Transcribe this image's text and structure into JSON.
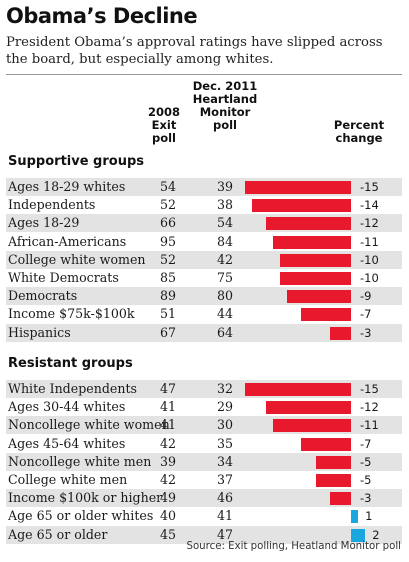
{
  "title": "Obama’s Decline",
  "subtitle": "President Obama’s approval ratings have slipped across the board, but especially among whites.",
  "columns": {
    "col_2008": "2008 Exit poll",
    "col_2011": "Dec. 2011 Heartland Monitor poll",
    "col_change": "Percent change"
  },
  "source": "Source: Exit polling, Heatland Monitor poll",
  "colors": {
    "decline": "#e8192c",
    "gain": "#1aa7e0",
    "shade": "#e3e3e3"
  },
  "chart_data": {
    "type": "bar",
    "title": "Obama’s Decline",
    "xlabel": "Percent change",
    "groups": [
      {
        "name": "Supportive groups",
        "rows": [
          {
            "label": "Ages 18-29 whites",
            "v2008": 54,
            "v2011": 39,
            "change": -15
          },
          {
            "label": "Independents",
            "v2008": 52,
            "v2011": 38,
            "change": -14
          },
          {
            "label": "Ages 18-29",
            "v2008": 66,
            "v2011": 54,
            "change": -12
          },
          {
            "label": "African-Americans",
            "v2008": 95,
            "v2011": 84,
            "change": -11
          },
          {
            "label": "College white women",
            "v2008": 52,
            "v2011": 42,
            "change": -10
          },
          {
            "label": "White Democrats",
            "v2008": 85,
            "v2011": 75,
            "change": -10
          },
          {
            "label": "Democrats",
            "v2008": 89,
            "v2011": 80,
            "change": -9
          },
          {
            "label": "Income $75k-$100k",
            "v2008": 51,
            "v2011": 44,
            "change": -7
          },
          {
            "label": "Hispanics",
            "v2008": 67,
            "v2011": 64,
            "change": -3
          }
        ]
      },
      {
        "name": "Resistant groups",
        "rows": [
          {
            "label": "White Independents",
            "v2008": 47,
            "v2011": 32,
            "change": -15
          },
          {
            "label": "Ages 30-44 whites",
            "v2008": 41,
            "v2011": 29,
            "change": -12
          },
          {
            "label": "Noncollege white women",
            "v2008": 41,
            "v2011": 30,
            "change": -11
          },
          {
            "label": "Ages 45-64 whites",
            "v2008": 42,
            "v2011": 35,
            "change": -7
          },
          {
            "label": "Noncollege white men",
            "v2008": 39,
            "v2011": 34,
            "change": -5
          },
          {
            "label": "College white men",
            "v2008": 42,
            "v2011": 37,
            "change": -5
          },
          {
            "label": "Income $100k or higher",
            "v2008": 49,
            "v2011": 46,
            "change": -3
          },
          {
            "label": "Age 65 or older whites",
            "v2008": 40,
            "v2011": 41,
            "change": 1
          },
          {
            "label": "Age 65 or older",
            "v2008": 45,
            "v2011": 47,
            "change": 2
          }
        ]
      }
    ]
  }
}
